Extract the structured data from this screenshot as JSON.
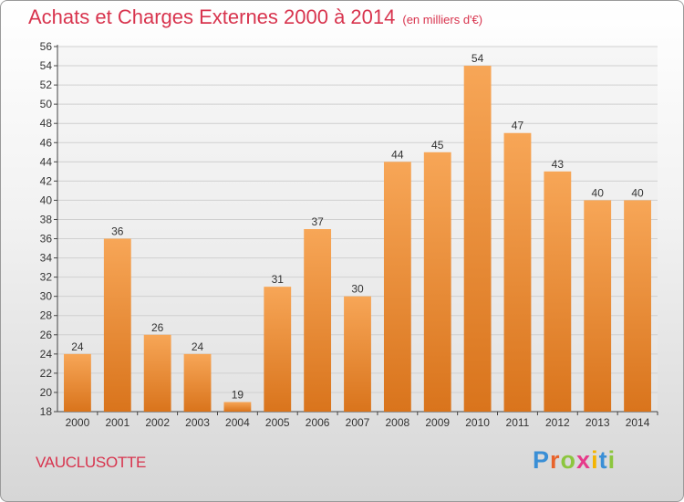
{
  "title": "Achats et Charges Externes 2000 à 2014",
  "subtitle": "(en milliers d'€)",
  "location": "VAUCLUSOTTE",
  "logo": {
    "letters": [
      "P",
      "r",
      "o",
      "x",
      "i",
      "t",
      "i"
    ],
    "colors": [
      "#3a8fd6",
      "#e8632b",
      "#8cc63e",
      "#e63a8a",
      "#f4b400",
      "#3a8fd6",
      "#8cc63e"
    ]
  },
  "colors": {
    "title": "#d8344e",
    "bar_top": "#f7a657",
    "bar_bottom": "#d9741c",
    "axis": "#444444"
  },
  "chart_data": {
    "type": "bar",
    "categories": [
      "2000",
      "2001",
      "2002",
      "2003",
      "2004",
      "2005",
      "2006",
      "2007",
      "2008",
      "2009",
      "2010",
      "2011",
      "2012",
      "2013",
      "2014"
    ],
    "values": [
      24,
      36,
      26,
      24,
      19,
      31,
      37,
      30,
      44,
      45,
      54,
      47,
      43,
      40,
      40
    ],
    "ylim": [
      18,
      56
    ],
    "yticks": [
      18,
      20,
      22,
      24,
      26,
      28,
      30,
      32,
      34,
      36,
      38,
      40,
      42,
      44,
      46,
      48,
      50,
      52,
      54,
      56
    ],
    "grid": true,
    "legend": false
  }
}
